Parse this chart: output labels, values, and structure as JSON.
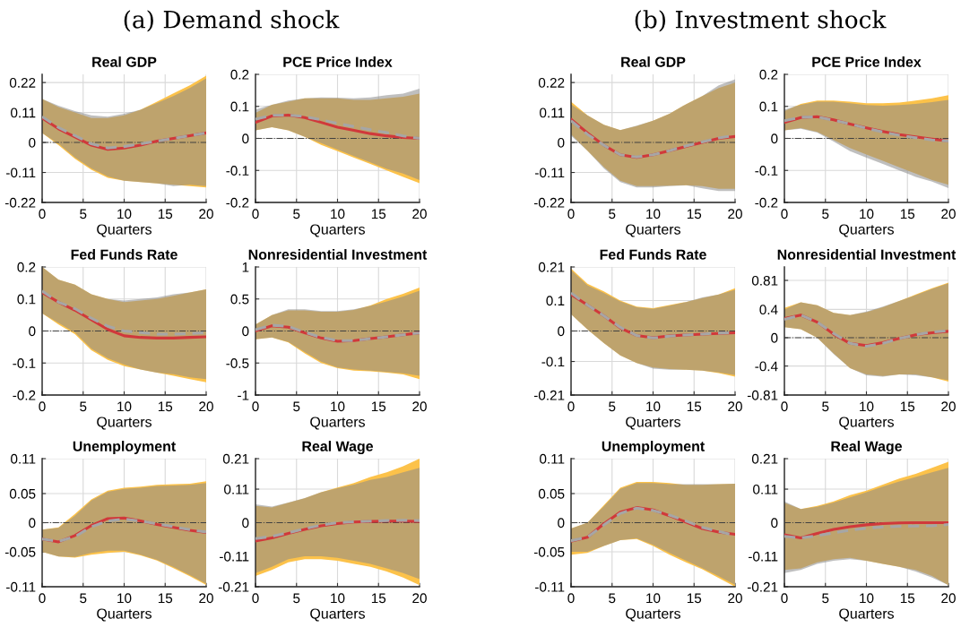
{
  "chart_data": [
    {
      "type": "line",
      "title": "Real GDP",
      "xlabel": "Quarters",
      "annotations": [
        "(a) Demand shock"
      ],
      "x": [
        0,
        2,
        4,
        6,
        8,
        10,
        12,
        14,
        16,
        18,
        20
      ],
      "xlim": [
        0,
        20
      ],
      "xticks": [
        0,
        5,
        10,
        15,
        20
      ],
      "ylim": [
        -0.22,
        0.25
      ],
      "yticks": [
        -0.22,
        -0.11,
        0,
        0.11,
        0.22
      ],
      "grid": true,
      "ref_lines": [
        {
          "axis": "y",
          "value": 0,
          "color": "#404040",
          "line_style": "dashdot"
        }
      ],
      "series": [
        {
          "color": "#d0393b",
          "line_style": "solid",
          "values": [
            0.09,
            0.05,
            0.02,
            -0.01,
            -0.025,
            -0.02,
            -0.01,
            0.005,
            0.015,
            0.025,
            0.035
          ],
          "lower": [
            0.035,
            -0.01,
            -0.06,
            -0.1,
            -0.13,
            -0.14,
            -0.145,
            -0.15,
            -0.155,
            -0.16,
            -0.165
          ],
          "upper": [
            0.16,
            0.13,
            0.11,
            0.09,
            0.09,
            0.1,
            0.12,
            0.15,
            0.18,
            0.21,
            0.245
          ]
        },
        {
          "color": "#a6a6a6",
          "line_style": "dashed",
          "values": [
            0.095,
            0.055,
            0.025,
            -0.005,
            -0.02,
            -0.015,
            -0.005,
            0.005,
            0.015,
            0.025,
            0.035
          ],
          "lower": [
            0.035,
            -0.005,
            -0.055,
            -0.095,
            -0.125,
            -0.14,
            -0.145,
            -0.15,
            -0.16,
            -0.155,
            -0.16
          ],
          "upper": [
            0.16,
            0.135,
            0.115,
            0.1,
            0.095,
            0.105,
            0.12,
            0.145,
            0.17,
            0.2,
            0.235
          ]
        }
      ]
    },
    {
      "type": "line",
      "title": "PCE Price Index",
      "xlabel": "Quarters",
      "x": [
        0,
        2,
        4,
        6,
        8,
        10,
        12,
        14,
        16,
        18,
        20
      ],
      "xlim": [
        0,
        20
      ],
      "xticks": [
        0,
        5,
        10,
        15,
        20
      ],
      "ylim": [
        -0.2,
        0.2
      ],
      "yticks": [
        -0.2,
        -0.1,
        0,
        0.1,
        0.2
      ],
      "grid": true,
      "ref_lines": [
        {
          "axis": "y",
          "value": 0,
          "color": "#404040",
          "line_style": "dashdot"
        }
      ],
      "series": [
        {
          "color": "#d0393b",
          "line_style": "solid",
          "values": [
            0.05,
            0.07,
            0.073,
            0.065,
            0.05,
            0.035,
            0.025,
            0.015,
            0.008,
            0.003,
            0
          ],
          "lower": [
            0.025,
            0.035,
            0.025,
            0.005,
            -0.02,
            -0.04,
            -0.06,
            -0.08,
            -0.1,
            -0.12,
            -0.14
          ],
          "upper": [
            0.08,
            0.105,
            0.115,
            0.125,
            0.125,
            0.125,
            0.12,
            0.12,
            0.125,
            0.13,
            0.14
          ]
        },
        {
          "color": "#a6a6a6",
          "line_style": "dashed",
          "values": [
            0.06,
            0.072,
            0.073,
            0.068,
            0.058,
            0.047,
            0.037,
            0.027,
            0.018,
            0.008,
            0
          ],
          "lower": [
            0.025,
            0.035,
            0.025,
            0.005,
            -0.015,
            -0.035,
            -0.055,
            -0.075,
            -0.095,
            -0.11,
            -0.13
          ],
          "upper": [
            0.09,
            0.105,
            0.118,
            0.125,
            0.128,
            0.127,
            0.125,
            0.128,
            0.135,
            0.14,
            0.155
          ]
        }
      ]
    },
    {
      "type": "line",
      "title": "Fed Funds Rate",
      "xlabel": "Quarters",
      "x": [
        0,
        2,
        4,
        6,
        8,
        10,
        12,
        14,
        16,
        18,
        20
      ],
      "xlim": [
        0,
        20
      ],
      "xticks": [
        0,
        5,
        10,
        15,
        20
      ],
      "ylim": [
        -0.2,
        0.2
      ],
      "yticks": [
        -0.2,
        -0.1,
        0,
        0.1,
        0.2
      ],
      "grid": true,
      "ref_lines": [
        {
          "axis": "y",
          "value": 0,
          "color": "#404040",
          "line_style": "dashdot"
        }
      ],
      "series": [
        {
          "color": "#d0393b",
          "line_style": "solid",
          "values": [
            0.12,
            0.09,
            0.065,
            0.035,
            0.005,
            -0.015,
            -0.02,
            -0.022,
            -0.022,
            -0.02,
            -0.018
          ],
          "lower": [
            0.055,
            0.02,
            -0.01,
            -0.06,
            -0.09,
            -0.11,
            -0.12,
            -0.13,
            -0.14,
            -0.15,
            -0.16
          ],
          "upper": [
            0.2,
            0.16,
            0.145,
            0.115,
            0.1,
            0.09,
            0.095,
            0.1,
            0.11,
            0.12,
            0.13
          ]
        },
        {
          "color": "#a6a6a6",
          "line_style": "dashed",
          "values": [
            0.125,
            0.09,
            0.07,
            0.04,
            0.015,
            0.0,
            -0.005,
            -0.01,
            -0.01,
            -0.008,
            -0.005
          ],
          "lower": [
            0.055,
            0.025,
            -0.005,
            -0.055,
            -0.085,
            -0.105,
            -0.12,
            -0.13,
            -0.135,
            -0.145,
            -0.15
          ],
          "upper": [
            0.2,
            0.16,
            0.145,
            0.115,
            0.1,
            0.095,
            0.1,
            0.105,
            0.115,
            0.12,
            0.13
          ]
        }
      ]
    },
    {
      "type": "line",
      "title": "Nonresidential Investment",
      "xlabel": "Quarters",
      "x": [
        0,
        2,
        4,
        6,
        8,
        10,
        12,
        14,
        16,
        18,
        20
      ],
      "xlim": [
        0,
        20
      ],
      "xticks": [
        0,
        5,
        10,
        15,
        20
      ],
      "ylim": [
        -1,
        1
      ],
      "yticks": [
        -1,
        -0.5,
        0,
        0.5,
        1
      ],
      "grid": true,
      "ref_lines": [
        {
          "axis": "y",
          "value": 0,
          "color": "#404040",
          "line_style": "dashdot"
        }
      ],
      "series": [
        {
          "color": "#d0393b",
          "line_style": "solid",
          "values": [
            0.0,
            0.08,
            0.06,
            -0.03,
            -0.11,
            -0.16,
            -0.15,
            -0.12,
            -0.09,
            -0.06,
            -0.03
          ],
          "lower": [
            -0.13,
            -0.1,
            -0.18,
            -0.35,
            -0.5,
            -0.58,
            -0.62,
            -0.63,
            -0.65,
            -0.68,
            -0.75
          ],
          "upper": [
            0.1,
            0.25,
            0.32,
            0.32,
            0.3,
            0.3,
            0.33,
            0.4,
            0.5,
            0.58,
            0.68
          ]
        },
        {
          "color": "#a6a6a6",
          "line_style": "dashed",
          "values": [
            0.02,
            0.09,
            0.07,
            -0.02,
            -0.1,
            -0.15,
            -0.15,
            -0.12,
            -0.09,
            -0.06,
            -0.03
          ],
          "lower": [
            -0.13,
            -0.1,
            -0.17,
            -0.33,
            -0.48,
            -0.57,
            -0.6,
            -0.62,
            -0.64,
            -0.66,
            -0.7
          ],
          "upper": [
            0.1,
            0.25,
            0.34,
            0.34,
            0.31,
            0.31,
            0.34,
            0.39,
            0.46,
            0.54,
            0.63
          ]
        }
      ]
    },
    {
      "type": "line",
      "title": "Unemployment",
      "xlabel": "Quarters",
      "x": [
        0,
        2,
        4,
        6,
        8,
        10,
        12,
        14,
        16,
        18,
        20
      ],
      "xlim": [
        0,
        20
      ],
      "xticks": [
        0,
        5,
        10,
        15,
        20
      ],
      "ylim": [
        -0.11,
        0.11
      ],
      "yticks": [
        -0.11,
        -0.05,
        0,
        0.05,
        0.11
      ],
      "grid": true,
      "ref_lines": [
        {
          "axis": "y",
          "value": 0,
          "color": "#404040",
          "line_style": "dashdot"
        }
      ],
      "series": [
        {
          "color": "#d0393b",
          "line_style": "solid",
          "values": [
            -0.028,
            -0.033,
            -0.022,
            -0.005,
            0.007,
            0.008,
            0.003,
            -0.003,
            -0.008,
            -0.013,
            -0.017
          ],
          "lower": [
            -0.05,
            -0.058,
            -0.06,
            -0.055,
            -0.052,
            -0.05,
            -0.056,
            -0.065,
            -0.078,
            -0.092,
            -0.107
          ],
          "upper": [
            -0.012,
            -0.008,
            0.015,
            0.04,
            0.055,
            0.06,
            0.062,
            0.065,
            0.066,
            0.067,
            0.071
          ]
        },
        {
          "color": "#a6a6a6",
          "line_style": "dashed",
          "values": [
            -0.028,
            -0.032,
            -0.024,
            -0.007,
            0.003,
            0.006,
            0.003,
            -0.002,
            -0.007,
            -0.012,
            -0.016
          ],
          "lower": [
            -0.05,
            -0.058,
            -0.059,
            -0.052,
            -0.048,
            -0.048,
            -0.055,
            -0.064,
            -0.076,
            -0.09,
            -0.105
          ],
          "upper": [
            -0.012,
            -0.009,
            0.012,
            0.038,
            0.053,
            0.058,
            0.06,
            0.063,
            0.064,
            0.065,
            0.068
          ]
        }
      ]
    },
    {
      "type": "line",
      "title": "Real Wage",
      "xlabel": "Quarters",
      "x": [
        0,
        2,
        4,
        6,
        8,
        10,
        12,
        14,
        16,
        18,
        20
      ],
      "xlim": [
        0,
        20
      ],
      "xticks": [
        0,
        5,
        10,
        15,
        20
      ],
      "ylim": [
        -0.21,
        0.21
      ],
      "yticks": [
        -0.21,
        -0.11,
        0,
        0.11,
        0.21
      ],
      "grid": true,
      "ref_lines": [
        {
          "axis": "y",
          "value": 0,
          "color": "#404040",
          "line_style": "dashdot"
        }
      ],
      "series": [
        {
          "color": "#d0393b",
          "line_style": "solid",
          "values": [
            -0.06,
            -0.05,
            -0.035,
            -0.022,
            -0.01,
            -0.003,
            0.002,
            0.004,
            0.005,
            0.005,
            0.004
          ],
          "lower": [
            -0.175,
            -0.155,
            -0.13,
            -0.12,
            -0.12,
            -0.125,
            -0.135,
            -0.145,
            -0.16,
            -0.18,
            -0.205
          ],
          "upper": [
            0.055,
            0.05,
            0.065,
            0.08,
            0.1,
            0.115,
            0.13,
            0.15,
            0.165,
            0.185,
            0.21
          ]
        },
        {
          "color": "#a6a6a6",
          "line_style": "dashed",
          "values": [
            -0.052,
            -0.045,
            -0.033,
            -0.02,
            -0.008,
            0.0,
            0.003,
            0.005,
            0.007,
            0.008,
            0.007
          ],
          "lower": [
            -0.165,
            -0.145,
            -0.12,
            -0.11,
            -0.11,
            -0.115,
            -0.125,
            -0.135,
            -0.15,
            -0.165,
            -0.185
          ],
          "upper": [
            0.06,
            0.053,
            0.066,
            0.081,
            0.1,
            0.113,
            0.125,
            0.14,
            0.15,
            0.165,
            0.18
          ]
        }
      ]
    },
    {
      "type": "line",
      "title": "Real GDP",
      "xlabel": "Quarters",
      "annotations": [
        "(b) Investment shock"
      ],
      "x": [
        0,
        2,
        4,
        6,
        8,
        10,
        12,
        14,
        16,
        18,
        20
      ],
      "xlim": [
        0,
        20
      ],
      "xticks": [
        0,
        5,
        10,
        15,
        20
      ],
      "ylim": [
        -0.22,
        0.25
      ],
      "yticks": [
        -0.22,
        -0.11,
        0,
        0.11,
        0.22
      ],
      "grid": true,
      "ref_lines": [
        {
          "axis": "y",
          "value": 0,
          "color": "#404040",
          "line_style": "dashdot"
        }
      ],
      "series": [
        {
          "color": "#d0393b",
          "line_style": "solid",
          "values": [
            0.085,
            0.035,
            -0.01,
            -0.045,
            -0.055,
            -0.045,
            -0.03,
            -0.015,
            0.0,
            0.015,
            0.022
          ],
          "lower": [
            0.03,
            -0.03,
            -0.09,
            -0.14,
            -0.16,
            -0.16,
            -0.158,
            -0.157,
            -0.16,
            -0.17,
            -0.17
          ],
          "upper": [
            0.15,
            0.1,
            0.065,
            0.045,
            0.06,
            0.08,
            0.105,
            0.14,
            0.17,
            0.2,
            0.22
          ]
        },
        {
          "color": "#a6a6a6",
          "line_style": "dashed",
          "values": [
            0.08,
            0.03,
            -0.01,
            -0.045,
            -0.053,
            -0.045,
            -0.03,
            -0.013,
            0.002,
            0.017,
            0.026
          ],
          "lower": [
            0.025,
            -0.03,
            -0.095,
            -0.145,
            -0.165,
            -0.165,
            -0.16,
            -0.157,
            -0.168,
            -0.178,
            -0.178
          ],
          "upper": [
            0.14,
            0.1,
            0.065,
            0.045,
            0.062,
            0.08,
            0.105,
            0.14,
            0.17,
            0.21,
            0.232
          ]
        }
      ]
    },
    {
      "type": "line",
      "title": "PCE Price Index",
      "xlabel": "Quarters",
      "x": [
        0,
        2,
        4,
        6,
        8,
        10,
        12,
        14,
        16,
        18,
        20
      ],
      "xlim": [
        0,
        20
      ],
      "xticks": [
        0,
        5,
        10,
        15,
        20
      ],
      "ylim": [
        -0.2,
        0.2
      ],
      "yticks": [
        -0.2,
        -0.1,
        0,
        0.1,
        0.2
      ],
      "grid": true,
      "ref_lines": [
        {
          "axis": "y",
          "value": 0,
          "color": "#404040",
          "line_style": "dashdot"
        }
      ],
      "series": [
        {
          "color": "#d0393b",
          "line_style": "solid",
          "values": [
            0.05,
            0.065,
            0.068,
            0.058,
            0.045,
            0.033,
            0.022,
            0.012,
            0.005,
            -0.002,
            -0.008
          ],
          "lower": [
            0.025,
            0.032,
            0.02,
            -0.005,
            -0.03,
            -0.05,
            -0.07,
            -0.09,
            -0.11,
            -0.13,
            -0.145
          ],
          "upper": [
            0.085,
            0.108,
            0.118,
            0.118,
            0.115,
            0.11,
            0.11,
            0.112,
            0.118,
            0.125,
            0.135
          ]
        },
        {
          "color": "#a6a6a6",
          "line_style": "dashed",
          "values": [
            0.055,
            0.066,
            0.067,
            0.057,
            0.045,
            0.032,
            0.02,
            0.01,
            0.002,
            -0.005,
            -0.008
          ],
          "lower": [
            0.025,
            0.03,
            0.018,
            -0.01,
            -0.04,
            -0.06,
            -0.08,
            -0.1,
            -0.12,
            -0.135,
            -0.155
          ],
          "upper": [
            0.09,
            0.105,
            0.115,
            0.115,
            0.11,
            0.104,
            0.102,
            0.104,
            0.108,
            0.113,
            0.12
          ]
        }
      ]
    },
    {
      "type": "line",
      "title": "Fed Funds Rate",
      "xlabel": "Quarters",
      "x": [
        0,
        2,
        4,
        6,
        8,
        10,
        12,
        14,
        16,
        18,
        20
      ],
      "xlim": [
        0,
        20
      ],
      "xticks": [
        0,
        5,
        10,
        15,
        20
      ],
      "ylim": [
        -0.21,
        0.21
      ],
      "yticks": [
        -0.21,
        -0.1,
        0,
        0.1,
        0.21
      ],
      "grid": true,
      "ref_lines": [
        {
          "axis": "y",
          "value": 0,
          "color": "#404040",
          "line_style": "dashdot"
        }
      ],
      "series": [
        {
          "color": "#d0393b",
          "line_style": "solid",
          "values": [
            0.12,
            0.085,
            0.05,
            0.01,
            -0.015,
            -0.022,
            -0.016,
            -0.013,
            -0.01,
            -0.008,
            -0.006
          ],
          "lower": [
            0.055,
            0.005,
            -0.04,
            -0.08,
            -0.105,
            -0.12,
            -0.125,
            -0.127,
            -0.13,
            -0.138,
            -0.15
          ],
          "upper": [
            0.205,
            0.155,
            0.13,
            0.1,
            0.08,
            0.075,
            0.085,
            0.095,
            0.108,
            0.12,
            0.14
          ]
        },
        {
          "color": "#a6a6a6",
          "line_style": "dashed",
          "values": [
            0.125,
            0.085,
            0.05,
            0.012,
            -0.015,
            -0.023,
            -0.017,
            -0.013,
            -0.01,
            -0.007,
            -0.005
          ],
          "lower": [
            0.055,
            0.005,
            -0.04,
            -0.08,
            -0.105,
            -0.123,
            -0.127,
            -0.127,
            -0.13,
            -0.136,
            -0.145
          ],
          "upper": [
            0.2,
            0.15,
            0.125,
            0.097,
            0.078,
            0.073,
            0.083,
            0.095,
            0.11,
            0.12,
            0.135
          ]
        }
      ]
    },
    {
      "type": "line",
      "title": "Nonresidential Investment",
      "xlabel": "Quarters",
      "x": [
        0,
        2,
        4,
        6,
        8,
        10,
        12,
        14,
        16,
        18,
        20
      ],
      "xlim": [
        0,
        20
      ],
      "xticks": [
        0,
        5,
        10,
        15,
        20
      ],
      "ylim": [
        -0.81,
        1.0
      ],
      "yticks": [
        -0.81,
        -0.4,
        0,
        0.4,
        0.81
      ],
      "grid": true,
      "ref_lines": [
        {
          "axis": "y",
          "value": 0,
          "color": "#404040",
          "line_style": "dashdot"
        }
      ],
      "series": [
        {
          "color": "#d0393b",
          "line_style": "solid",
          "values": [
            0.27,
            0.32,
            0.22,
            0.05,
            -0.08,
            -0.11,
            -0.07,
            -0.01,
            0.04,
            0.07,
            0.09
          ],
          "lower": [
            0.15,
            0.12,
            0.0,
            -0.22,
            -0.43,
            -0.52,
            -0.54,
            -0.52,
            -0.52,
            -0.56,
            -0.62
          ],
          "upper": [
            0.42,
            0.5,
            0.46,
            0.35,
            0.32,
            0.36,
            0.43,
            0.52,
            0.61,
            0.7,
            0.78
          ]
        },
        {
          "color": "#a6a6a6",
          "line_style": "dashed",
          "values": [
            0.26,
            0.32,
            0.22,
            0.06,
            -0.08,
            -0.12,
            -0.08,
            -0.01,
            0.04,
            0.08,
            0.1
          ],
          "lower": [
            0.15,
            0.12,
            0.0,
            -0.23,
            -0.43,
            -0.53,
            -0.55,
            -0.52,
            -0.53,
            -0.56,
            -0.6
          ],
          "upper": [
            0.4,
            0.5,
            0.46,
            0.35,
            0.32,
            0.37,
            0.44,
            0.52,
            0.6,
            0.69,
            0.77
          ]
        }
      ]
    },
    {
      "type": "line",
      "title": "Unemployment",
      "xlabel": "Quarters",
      "x": [
        0,
        2,
        4,
        6,
        8,
        10,
        12,
        14,
        16,
        18,
        20
      ],
      "xlim": [
        0,
        20
      ],
      "xticks": [
        0,
        5,
        10,
        15,
        20
      ],
      "ylim": [
        -0.11,
        0.11
      ],
      "yticks": [
        -0.11,
        -0.05,
        0,
        0.05,
        0.11
      ],
      "grid": true,
      "ref_lines": [
        {
          "axis": "y",
          "value": 0,
          "color": "#404040",
          "line_style": "dashdot"
        }
      ],
      "series": [
        {
          "color": "#d0393b",
          "line_style": "solid",
          "values": [
            -0.032,
            -0.025,
            -0.002,
            0.018,
            0.026,
            0.022,
            0.012,
            0.001,
            -0.01,
            -0.016,
            -0.02
          ],
          "lower": [
            -0.055,
            -0.052,
            -0.04,
            -0.03,
            -0.028,
            -0.04,
            -0.055,
            -0.068,
            -0.08,
            -0.095,
            -0.11
          ],
          "upper": [
            -0.01,
            0.0,
            0.03,
            0.06,
            0.07,
            0.07,
            0.068,
            0.065,
            0.065,
            0.066,
            0.067
          ]
        },
        {
          "color": "#a6a6a6",
          "line_style": "dashed",
          "values": [
            -0.031,
            -0.025,
            -0.004,
            0.016,
            0.025,
            0.021,
            0.013,
            0.003,
            -0.008,
            -0.015,
            -0.022
          ],
          "lower": [
            -0.05,
            -0.05,
            -0.04,
            -0.03,
            -0.027,
            -0.038,
            -0.052,
            -0.065,
            -0.078,
            -0.092,
            -0.107
          ],
          "upper": [
            -0.01,
            0.0,
            0.028,
            0.058,
            0.068,
            0.068,
            0.066,
            0.066,
            0.066,
            0.066,
            0.067
          ]
        }
      ]
    },
    {
      "type": "line",
      "title": "Real Wage",
      "xlabel": "Quarters",
      "x": [
        0,
        2,
        4,
        6,
        8,
        10,
        12,
        14,
        16,
        18,
        20
      ],
      "xlim": [
        0,
        20
      ],
      "xticks": [
        0,
        5,
        10,
        15,
        20
      ],
      "ylim": [
        -0.21,
        0.21
      ],
      "yticks": [
        -0.21,
        -0.11,
        0,
        0.11,
        0.21
      ],
      "grid": true,
      "ref_lines": [
        {
          "axis": "y",
          "value": 0,
          "color": "#404040",
          "line_style": "dashdot"
        }
      ],
      "series": [
        {
          "color": "#d0393b",
          "line_style": "solid",
          "values": [
            -0.04,
            -0.05,
            -0.035,
            -0.022,
            -0.013,
            -0.007,
            -0.003,
            -0.001,
            0.0,
            0.0,
            0.0
          ],
          "lower": [
            -0.155,
            -0.15,
            -0.13,
            -0.12,
            -0.115,
            -0.125,
            -0.135,
            -0.145,
            -0.155,
            -0.175,
            -0.205
          ],
          "upper": [
            0.065,
            0.045,
            0.055,
            0.07,
            0.09,
            0.105,
            0.125,
            0.145,
            0.16,
            0.18,
            0.2
          ]
        },
        {
          "color": "#a6a6a6",
          "line_style": "dashed",
          "values": [
            -0.045,
            -0.05,
            -0.043,
            -0.033,
            -0.025,
            -0.018,
            -0.014,
            -0.012,
            -0.011,
            -0.01,
            -0.006
          ],
          "lower": [
            -0.165,
            -0.155,
            -0.135,
            -0.125,
            -0.12,
            -0.125,
            -0.135,
            -0.145,
            -0.16,
            -0.18,
            -0.205
          ],
          "upper": [
            0.07,
            0.045,
            0.052,
            0.066,
            0.083,
            0.1,
            0.118,
            0.135,
            0.15,
            0.165,
            0.18
          ]
        }
      ]
    }
  ]
}
